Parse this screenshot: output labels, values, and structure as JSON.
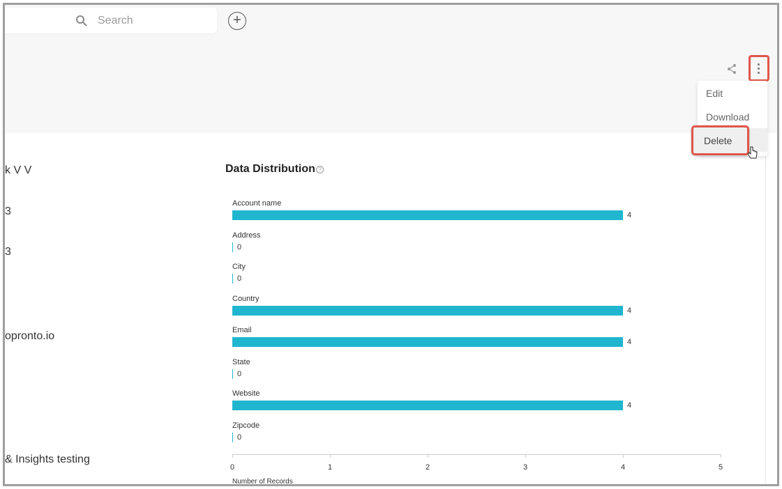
{
  "search": {
    "placeholder": "Search",
    "icon": "search-icon"
  },
  "add_icon": "plus-circle-icon",
  "header_actions": {
    "share_icon": "share-icon",
    "more_icon": "kebab-menu-icon"
  },
  "menu": {
    "edit": "Edit",
    "download": "Download",
    "delete": "Delete"
  },
  "left_fragments": [
    "k V V",
    "3",
    "3",
    "opronto.io",
    "& Insights testing"
  ],
  "section": {
    "title": "Data Distribution"
  },
  "chart_data": {
    "type": "bar",
    "orientation": "horizontal",
    "categories": [
      "Account name",
      "Address",
      "City",
      "Country",
      "Email",
      "State",
      "Website",
      "Zipcode"
    ],
    "values": [
      4,
      0,
      0,
      4,
      4,
      0,
      4,
      0
    ],
    "xlim": [
      0,
      5
    ],
    "xticks": [
      "0",
      "1",
      "2",
      "3",
      "4",
      "5"
    ],
    "xlabel": "Number of Records",
    "color": "#21b6cf"
  }
}
